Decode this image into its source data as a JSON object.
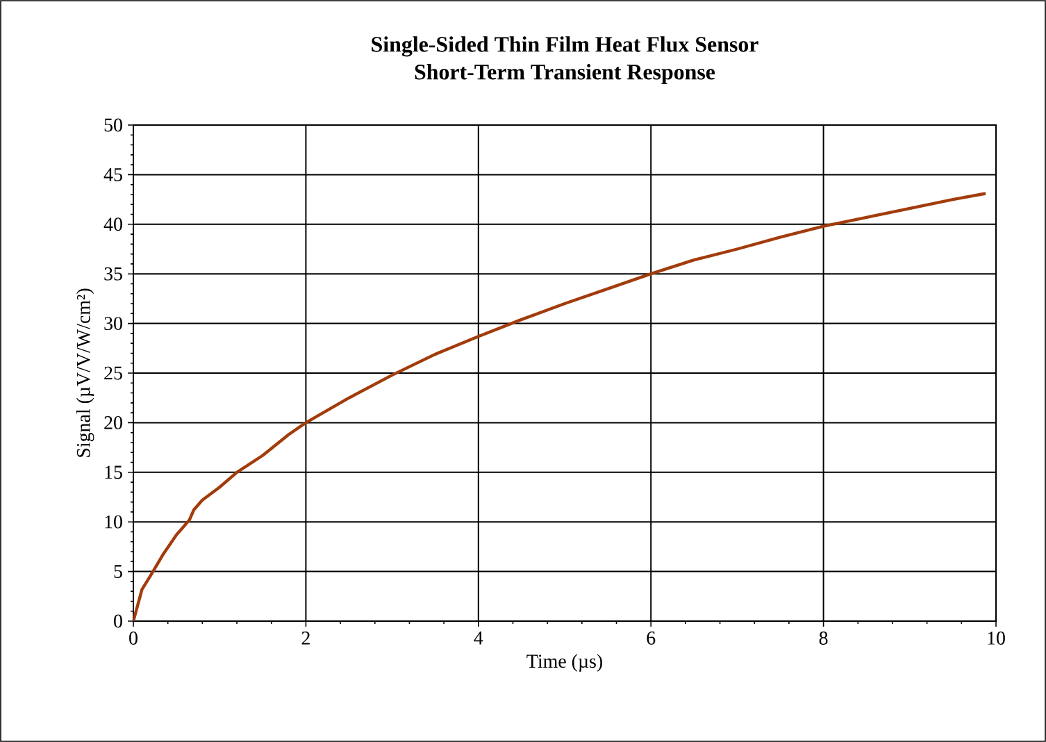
{
  "chart_data": {
    "type": "line",
    "title": "Single-Sided Thin Film Heat Flux Sensor\nShort-Term Transient Response",
    "xlabel": "Time (µs)",
    "ylabel": "Signal (µV/V/W/cm²)",
    "xlim": [
      0,
      10
    ],
    "ylim": [
      0,
      50
    ],
    "xticks": [
      0,
      2,
      4,
      6,
      8,
      10
    ],
    "yticks": [
      0,
      5,
      10,
      15,
      20,
      25,
      30,
      35,
      40,
      45,
      50
    ],
    "grid": true,
    "marker": "none",
    "line_style": "solid",
    "series": [
      {
        "color": "#a23c0c",
        "x": [
          0,
          0.1,
          0.2,
          0.35,
          0.5,
          0.65,
          0.7,
          0.8,
          1.0,
          1.2,
          1.5,
          1.8,
          2.0,
          2.5,
          3.0,
          3.5,
          4.0,
          4.5,
          5.0,
          5.5,
          6.0,
          6.5,
          7.0,
          7.5,
          8.0,
          8.5,
          9.0,
          9.5,
          9.88
        ],
        "values": [
          0,
          3.2,
          4.6,
          6.8,
          8.7,
          10.2,
          11.2,
          12.2,
          13.5,
          15.0,
          16.7,
          18.8,
          20.0,
          22.5,
          24.8,
          26.9,
          28.7,
          30.4,
          32.0,
          33.5,
          35.0,
          36.4,
          37.5,
          38.7,
          39.8,
          40.7,
          41.6,
          42.5,
          43.1
        ]
      }
    ]
  }
}
